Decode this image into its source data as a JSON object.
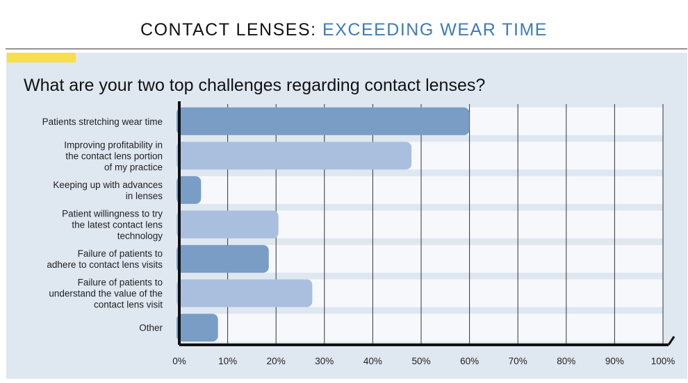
{
  "header": {
    "title_main": "CONTACT LENSES:",
    "title_accent": "EXCEEDING WEAR TIME"
  },
  "question": "What are your two top challenges regarding contact lenses?",
  "colors": {
    "accent": "#3f7ab8",
    "bar_dark": "#7a9dc6",
    "bar_light": "#aabfde",
    "panel": "#dfe7f1",
    "row": "#f7f8fb",
    "highlight": "#f5df4d"
  },
  "chart_data": {
    "type": "bar",
    "orientation": "horizontal",
    "title": "What are your two top challenges regarding contact lenses?",
    "categories": [
      [
        "Patients stretching wear time"
      ],
      [
        "Improving profitability in",
        "the contact lens portion",
        "of my practice"
      ],
      [
        "Keeping up with advances",
        "in lenses"
      ],
      [
        "Patient willingness to try",
        "the latest contact lens",
        "technology"
      ],
      [
        "Failure of patients to",
        "adhere to contact lens visits"
      ],
      [
        "Failure of patients to",
        "understand the value of the",
        "contact lens visit"
      ],
      [
        "Other"
      ]
    ],
    "values": [
      60,
      48,
      4.5,
      20.5,
      18.5,
      27.5,
      8
    ],
    "xlim": [
      0,
      100
    ],
    "xticks": [
      "0%",
      "10%",
      "20%",
      "30%",
      "40%",
      "50%",
      "60%",
      "70%",
      "80%",
      "90%",
      "100%"
    ],
    "grid": true
  }
}
